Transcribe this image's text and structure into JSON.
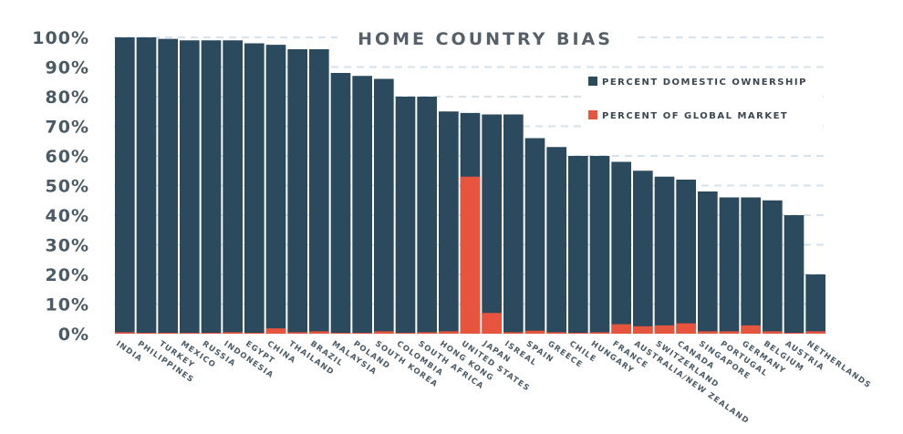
{
  "chart_data": {
    "type": "bar",
    "title": "HOME COUNTRY BIAS",
    "categories": [
      "INDIA",
      "PHILIPPINES",
      "TURKEY",
      "MEXICO",
      "RUSSIA",
      "INDONESIA",
      "EGYPT",
      "CHINA",
      "THAILAND",
      "BRAZIL",
      "MALAYSIA",
      "POLAND",
      "SOUTH KOREA",
      "COLOMBIA",
      "SOUTH AFRICA",
      "HONG KONG",
      "UNITED STATES",
      "JAPAN",
      "ISREAL",
      "SPAIN",
      "GREECE",
      "CHILE",
      "HUNGARY",
      "FRANCE",
      "AUSTRALIA/NEW ZEALAND",
      "SWITZERLAND",
      "CANADA",
      "SINGAPORE",
      "PORTUGAL",
      "GERMANY",
      "BELGIUM",
      "AUSTRIA",
      "NETHERLANDS"
    ],
    "series": [
      {
        "name": "PERCENT DOMESTIC OWNERSHIP",
        "color": "#2c4a5e",
        "values": [
          100,
          100,
          99.5,
          99,
          99,
          99,
          98,
          97.5,
          96,
          96,
          88,
          87,
          86,
          80,
          80,
          75,
          74.5,
          74,
          74,
          66,
          63,
          60,
          60,
          58,
          55,
          53,
          52,
          48,
          46,
          46,
          45,
          40,
          20
        ]
      },
      {
        "name": "PERCENT OF GLOBAL MARKET",
        "color": "#e8553f",
        "values": [
          0.5,
          0.3,
          0.3,
          0.3,
          0.3,
          0.5,
          0.3,
          1.8,
          0.5,
          0.8,
          0.3,
          0.3,
          0.8,
          0.3,
          0.5,
          0.8,
          53,
          7,
          0.5,
          1,
          0.5,
          0.3,
          0.5,
          3.2,
          2.5,
          2.8,
          3.5,
          0.8,
          0.8,
          2.8,
          0.8,
          0.3,
          0.8
        ]
      }
    ],
    "yticks": [
      "0%",
      "10%",
      "20%",
      "30%",
      "40%",
      "50%",
      "60%",
      "70%",
      "80%",
      "90%",
      "100%"
    ],
    "ylim": [
      0,
      100
    ],
    "xlabel": "",
    "ylabel": "",
    "legend_position": "top-right",
    "grid": true
  }
}
